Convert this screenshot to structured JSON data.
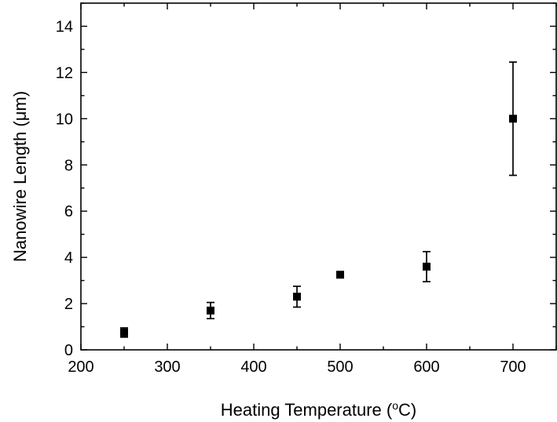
{
  "chart_data": {
    "type": "scatter",
    "title": "",
    "xlabel": "Heating Temperature (",
    "xlabel_sup": "o",
    "xlabel_tail": "C)",
    "ylabel": "Nanowire Length (μm)",
    "xlim": [
      200,
      750
    ],
    "ylim": [
      0,
      15
    ],
    "x_ticks": [
      200,
      300,
      400,
      500,
      600,
      700
    ],
    "y_ticks": [
      0,
      2,
      4,
      6,
      8,
      10,
      12,
      14
    ],
    "x_tick_labels": [
      "200",
      "300",
      "400",
      "500",
      "600",
      "700"
    ],
    "y_tick_labels": [
      "0",
      "2",
      "4",
      "6",
      "8",
      "10",
      "12",
      "14"
    ],
    "grid": false,
    "legend": "none",
    "marker_color": "#000000",
    "points": [
      {
        "x": 250,
        "y": 0.75,
        "err_low": 0.55,
        "err_high": 0.95
      },
      {
        "x": 350,
        "y": 1.7,
        "err_low": 1.35,
        "err_high": 2.05
      },
      {
        "x": 450,
        "y": 2.3,
        "err_low": 1.85,
        "err_high": 2.75
      },
      {
        "x": 500,
        "y": 3.25,
        "err_low": 3.15,
        "err_high": 3.35
      },
      {
        "x": 600,
        "y": 3.6,
        "err_low": 2.95,
        "err_high": 4.25
      },
      {
        "x": 700,
        "y": 10.0,
        "err_low": 7.55,
        "err_high": 12.45
      }
    ]
  }
}
